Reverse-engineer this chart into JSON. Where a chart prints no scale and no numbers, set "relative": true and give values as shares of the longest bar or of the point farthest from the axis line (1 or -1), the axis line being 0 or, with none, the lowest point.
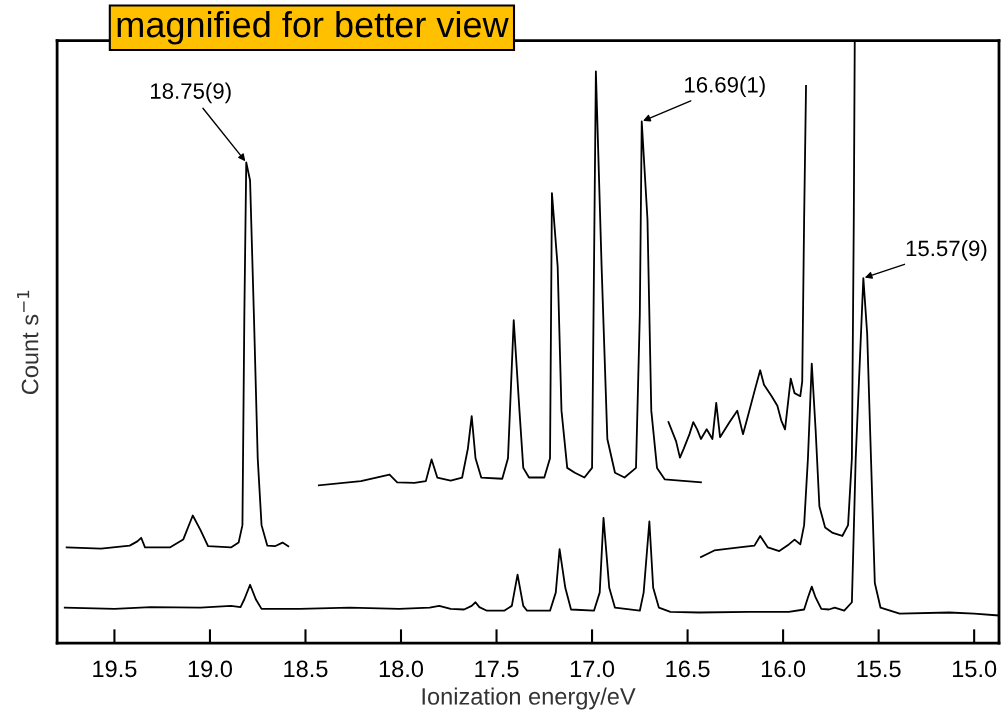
{
  "chart_data": {
    "type": "line",
    "relative": true,
    "xlabel": "Ionization energy/eV",
    "ylabel": "Count s$^{−1}$",
    "xlim": [
      19.8,
      14.87
    ],
    "xticks": [
      19.5,
      {
        "value": 19,
        "label": "19.0"
      },
      18.5,
      {
        "value": 18,
        "label": "18.0"
      },
      17.5,
      {
        "value": 17,
        "label": "17.0"
      },
      16.5,
      {
        "value": 16,
        "label": "16.0"
      },
      15.5,
      {
        "value": 15,
        "label": "15.0"
      }
    ],
    "tick_labels": "x",
    "grid": false,
    "marker": "none",
    "line_style": "solid",
    "series": [
      {
        "color": "#000000",
        "x": [
          19.76,
          19.5,
          19.31,
          19.05,
          18.89,
          18.84,
          18.82,
          18.79,
          18.76,
          18.73,
          18.53,
          18.27,
          18.01,
          17.85,
          17.8,
          17.74,
          17.67,
          17.63,
          17.61,
          17.59,
          17.55,
          17.46,
          17.42,
          17.39,
          17.36,
          17.34,
          17.22,
          17.19,
          17.17,
          17.14,
          17.11,
          16.99,
          16.96,
          16.94,
          16.91,
          16.88,
          16.75,
          16.73,
          16.7,
          16.68,
          16.65,
          16.59,
          16.44,
          16.18,
          15.97,
          15.89,
          15.87,
          15.85,
          15.83,
          15.8,
          15.76,
          15.73,
          15.68,
          15.64,
          15.62,
          15.58,
          15.56,
          15.54,
          15.52,
          15.49,
          15.39,
          15.13,
          15.0,
          14.87
        ],
        "values": [
          0.059,
          0.057,
          0.06,
          0.059,
          0.062,
          0.06,
          0.073,
          0.097,
          0.073,
          0.057,
          0.057,
          0.059,
          0.057,
          0.059,
          0.062,
          0.057,
          0.056,
          0.062,
          0.068,
          0.06,
          0.054,
          0.054,
          0.062,
          0.114,
          0.062,
          0.054,
          0.054,
          0.084,
          0.156,
          0.092,
          0.056,
          0.054,
          0.084,
          0.208,
          0.092,
          0.059,
          0.054,
          0.084,
          0.202,
          0.092,
          0.059,
          0.052,
          0.051,
          0.052,
          0.052,
          0.056,
          0.076,
          0.094,
          0.076,
          0.057,
          0.056,
          0.059,
          0.054,
          0.068,
          0.307,
          0.606,
          0.514,
          0.307,
          0.1,
          0.059,
          0.049,
          0.051,
          0.049,
          0.046
        ]
      },
      {
        "color": "#000000",
        "x": [
          19.75,
          19.57,
          19.42,
          19.38,
          19.36,
          19.34,
          19.21,
          19.14,
          19.09,
          19.05,
          19.01,
          18.89,
          18.85,
          18.83,
          18.82,
          18.81,
          18.79,
          18.77,
          18.75,
          18.73,
          18.7,
          18.66,
          18.62,
          18.59
        ],
        "values": [
          0.159,
          0.157,
          0.162,
          0.169,
          0.175,
          0.159,
          0.159,
          0.172,
          0.212,
          0.188,
          0.161,
          0.159,
          0.167,
          0.196,
          0.545,
          0.798,
          0.768,
          0.545,
          0.307,
          0.196,
          0.162,
          0.161,
          0.167,
          0.161
        ]
      },
      {
        "color": "#000000",
        "x": [
          18.43,
          18.21,
          18.06,
          18.02,
          17.93,
          17.87,
          17.84,
          17.81,
          17.74,
          17.68,
          17.65,
          17.63,
          17.61,
          17.58,
          17.47,
          17.44,
          17.41,
          17.38,
          17.36,
          17.33,
          17.25,
          17.22,
          17.21,
          17.18,
          17.16,
          17.13,
          17.09,
          17.04,
          17.0,
          16.98,
          16.95,
          16.92,
          16.88,
          16.83,
          16.77,
          16.75,
          16.74,
          16.71,
          16.69,
          16.66,
          16.62,
          16.54,
          16.43
        ],
        "values": [
          0.262,
          0.269,
          0.28,
          0.267,
          0.266,
          0.269,
          0.305,
          0.275,
          0.27,
          0.275,
          0.323,
          0.377,
          0.307,
          0.275,
          0.273,
          0.307,
          0.536,
          0.386,
          0.291,
          0.275,
          0.275,
          0.307,
          0.747,
          0.625,
          0.386,
          0.291,
          0.283,
          0.275,
          0.291,
          0.949,
          0.625,
          0.339,
          0.283,
          0.275,
          0.291,
          0.545,
          0.866,
          0.704,
          0.386,
          0.291,
          0.272,
          0.27,
          0.267
        ]
      },
      {
        "color": "#000000",
        "x": [
          16.6,
          16.56,
          16.54,
          16.52,
          16.49,
          16.47,
          16.45,
          16.43,
          16.4,
          16.37,
          16.35,
          16.33,
          16.28,
          16.24,
          16.21,
          16.19,
          16.15,
          16.12,
          16.1,
          16.06,
          16.03,
          16.01,
          15.99,
          15.96,
          15.94,
          15.91,
          15.9,
          15.89,
          15.88
        ],
        "values": [
          0.367,
          0.335,
          0.308,
          0.323,
          0.347,
          0.367,
          0.355,
          0.339,
          0.355,
          0.339,
          0.399,
          0.342,
          0.367,
          0.386,
          0.347,
          0.37,
          0.418,
          0.453,
          0.429,
          0.41,
          0.394,
          0.37,
          0.355,
          0.439,
          0.415,
          0.41,
          0.434,
          0.704,
          0.925
        ]
      },
      {
        "color": "#000000",
        "x": [
          16.43,
          16.36,
          16.23,
          16.15,
          16.12,
          16.08,
          16.02,
          15.97,
          15.94,
          15.91,
          15.89,
          15.87,
          15.85,
          15.83,
          15.81,
          15.78,
          15.74,
          15.69,
          15.66,
          15.64,
          15.63,
          15.625
        ],
        "values": [
          0.143,
          0.154,
          0.159,
          0.162,
          0.178,
          0.159,
          0.153,
          0.164,
          0.172,
          0.164,
          0.196,
          0.307,
          0.464,
          0.355,
          0.227,
          0.192,
          0.183,
          0.178,
          0.196,
          0.307,
          0.704,
          1.0
        ]
      }
    ],
    "annotations": [
      {
        "text": "18.75(9)",
        "x": 18.81,
        "y": 0.798
      },
      {
        "text": "16.69(1)",
        "x": 16.74,
        "y": 0.866
      },
      {
        "text": "15.57(9)",
        "x": 15.58,
        "y": 0.606
      },
      "magnified for better view"
    ]
  }
}
